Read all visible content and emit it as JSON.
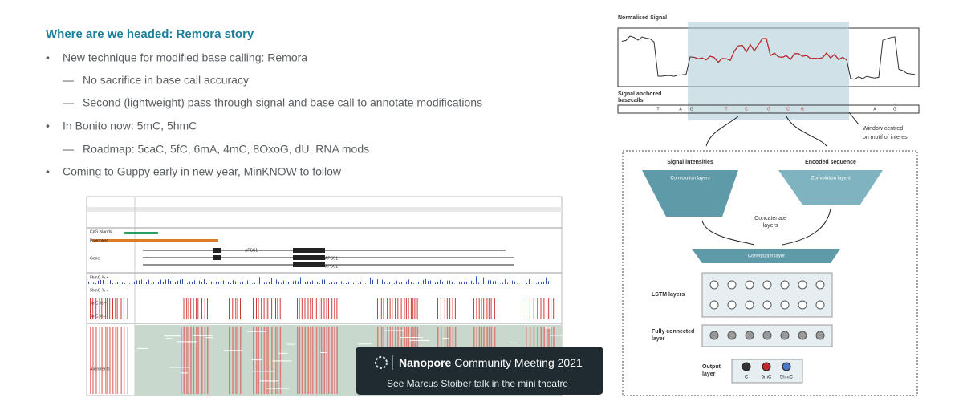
{
  "slide": {
    "title": "Where are we headed: Remora story",
    "bullets": [
      {
        "text": "New technique for modified base calling: Remora",
        "sub": [
          "No sacrifice in base call accuracy",
          "Second (lightweight) pass through signal and base call to annotate modifications"
        ]
      },
      {
        "text": "In Bonito now: 5mC, 5hmC",
        "sub": [
          "Roadmap: 5caC, 5fC, 6mA, 4mC, 8OxoG, dU, RNA mods"
        ]
      },
      {
        "text": "Coming to Guppy early in new year, MinKNOW to follow",
        "sub": []
      }
    ]
  },
  "browser": {
    "tracks": [
      "CpG islands",
      "Promoters",
      "Gene",
      "5hmC % +",
      "5hmC % -",
      "5mC % +",
      "5mC % -",
      "Alignments"
    ],
    "genes": [
      "APSS1",
      "APSS1",
      "APSS1"
    ]
  },
  "banner": {
    "brand": "Nanopore",
    "event": "Community Meeting 2021",
    "note": "See Marcus Stoiber talk in the mini theatre"
  },
  "diagram": {
    "signal_label": "Normalised Signal",
    "basecall_label": [
      "Signal anchored",
      "basecalls"
    ],
    "basecalls": [
      "T",
      "A",
      "G",
      "T",
      "C",
      "G",
      "C",
      "G",
      "A",
      "G"
    ],
    "window_label": [
      "Window centred",
      "on motif of interes"
    ],
    "branches": [
      {
        "title": "Signal intensities",
        "layer": "Convolution layers"
      },
      {
        "title": "Encoded sequence",
        "layer": "Convolution layers"
      }
    ],
    "concat": [
      "Concatenate",
      "layers"
    ],
    "conv": "Convolution layer",
    "lstm": "LSTM layers",
    "fc": [
      "Fully connected",
      "layer"
    ],
    "output": [
      "Output",
      "layer"
    ],
    "classes": [
      "C",
      "5mC",
      "5hmC"
    ]
  }
}
